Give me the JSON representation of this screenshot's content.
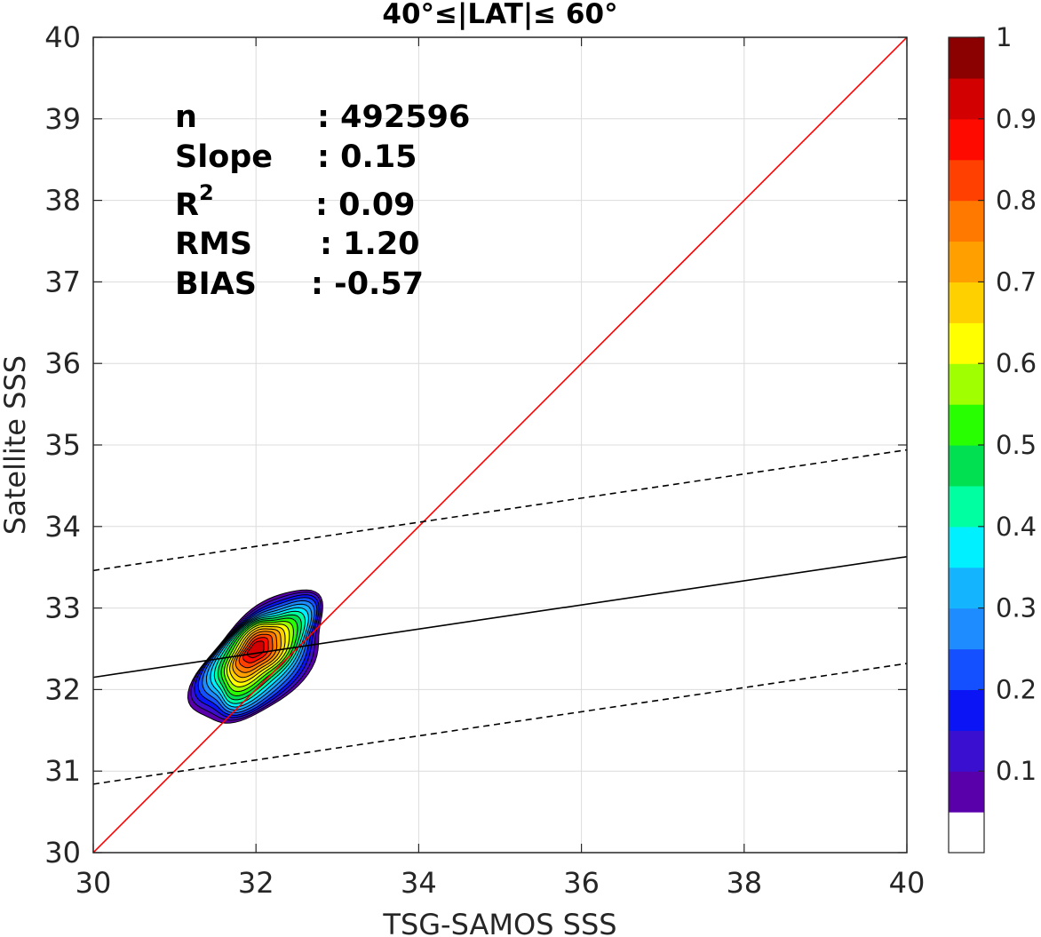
{
  "chart_data": {
    "type": "contour",
    "title": "40°≤|LAT|≤ 60°",
    "xlabel": "TSG-SAMOS SSS",
    "ylabel": "Satellite SSS",
    "xlim": [
      30,
      40
    ],
    "ylim": [
      30,
      40
    ],
    "xticks": [
      "30",
      "32",
      "34",
      "36",
      "38",
      "40"
    ],
    "yticks": [
      "30",
      "31",
      "32",
      "33",
      "34",
      "35",
      "36",
      "37",
      "38",
      "39",
      "40"
    ],
    "grid": true,
    "stats": [
      {
        "key": "n",
        "value": ": 492596"
      },
      {
        "key": "Slope",
        "value": ": 0.15"
      },
      {
        "key": "R",
        "sup": "2",
        "value": ": 0.09"
      },
      {
        "key": "RMS",
        "value": ": 1.20"
      },
      {
        "key": "BIAS",
        "value": ": -0.57"
      }
    ],
    "density_peak": {
      "x": 32.0,
      "y": 32.5
    },
    "lines": [
      {
        "name": "one-to-one",
        "style": "solid",
        "color": "#ff0000",
        "x": [
          30,
          40
        ],
        "y": [
          30,
          40
        ]
      },
      {
        "name": "regression",
        "style": "solid",
        "color": "#000000",
        "x": [
          30,
          40
        ],
        "y": [
          32.15,
          33.63
        ]
      },
      {
        "name": "upper-bound",
        "style": "dashed",
        "color": "#000000",
        "x": [
          30,
          40
        ],
        "y": [
          33.46,
          34.94
        ]
      },
      {
        "name": "lower-bound",
        "style": "dashed",
        "color": "#000000",
        "x": [
          30,
          40
        ],
        "y": [
          30.84,
          32.32
        ]
      }
    ],
    "colorbar": {
      "ticks": [
        "1",
        "0.9",
        "0.8",
        "0.7",
        "0.6",
        "0.5",
        "0.4",
        "0.3",
        "0.2",
        "0.1"
      ],
      "levels": [
        0.05,
        0.1,
        0.15,
        0.2,
        0.25,
        0.3,
        0.35,
        0.4,
        0.45,
        0.5,
        0.55,
        0.6,
        0.65,
        0.7,
        0.75,
        0.8,
        0.85,
        0.9,
        0.95,
        1.0
      ],
      "colors": [
        "#ffffff",
        "#5a00aa",
        "#3a0fd0",
        "#0a14f5",
        "#1450ff",
        "#1e8cff",
        "#14b4ff",
        "#00f0ff",
        "#00ffa0",
        "#00e050",
        "#28ff00",
        "#a0ff00",
        "#ffff00",
        "#ffd000",
        "#ffa000",
        "#ff7800",
        "#ff4000",
        "#ff0a00",
        "#d20000",
        "#8b0000"
      ]
    }
  }
}
